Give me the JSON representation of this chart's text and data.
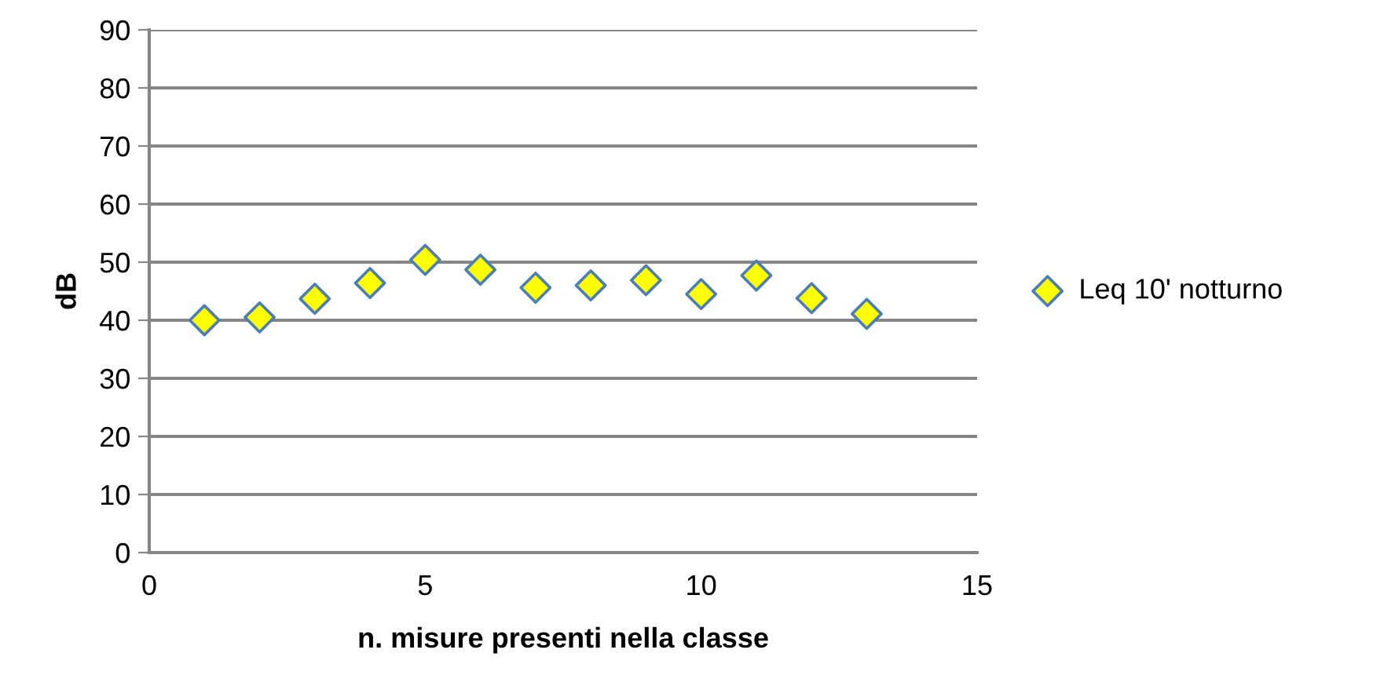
{
  "chart_data": {
    "type": "scatter",
    "xlabel": "n. misure presenti nella classe",
    "ylabel": "dB",
    "x": [
      1,
      2,
      3,
      4,
      5,
      6,
      7,
      8,
      9,
      10,
      11,
      12,
      13
    ],
    "series": [
      {
        "name": "Leq 10' notturno",
        "color": "#ffff00",
        "values": [
          40.0,
          40.5,
          43.7,
          46.4,
          50.4,
          48.7,
          45.6,
          46.0,
          46.9,
          44.5,
          47.7,
          43.8,
          41.1
        ]
      }
    ],
    "xlim": [
      0,
      15
    ],
    "xticks": [
      0,
      5,
      10,
      15
    ],
    "ylim": [
      0,
      90
    ],
    "yticks": [
      0,
      10,
      20,
      30,
      40,
      50,
      60,
      70,
      80,
      90
    ],
    "grid": "y",
    "legend": "right",
    "marker": "diamond"
  }
}
